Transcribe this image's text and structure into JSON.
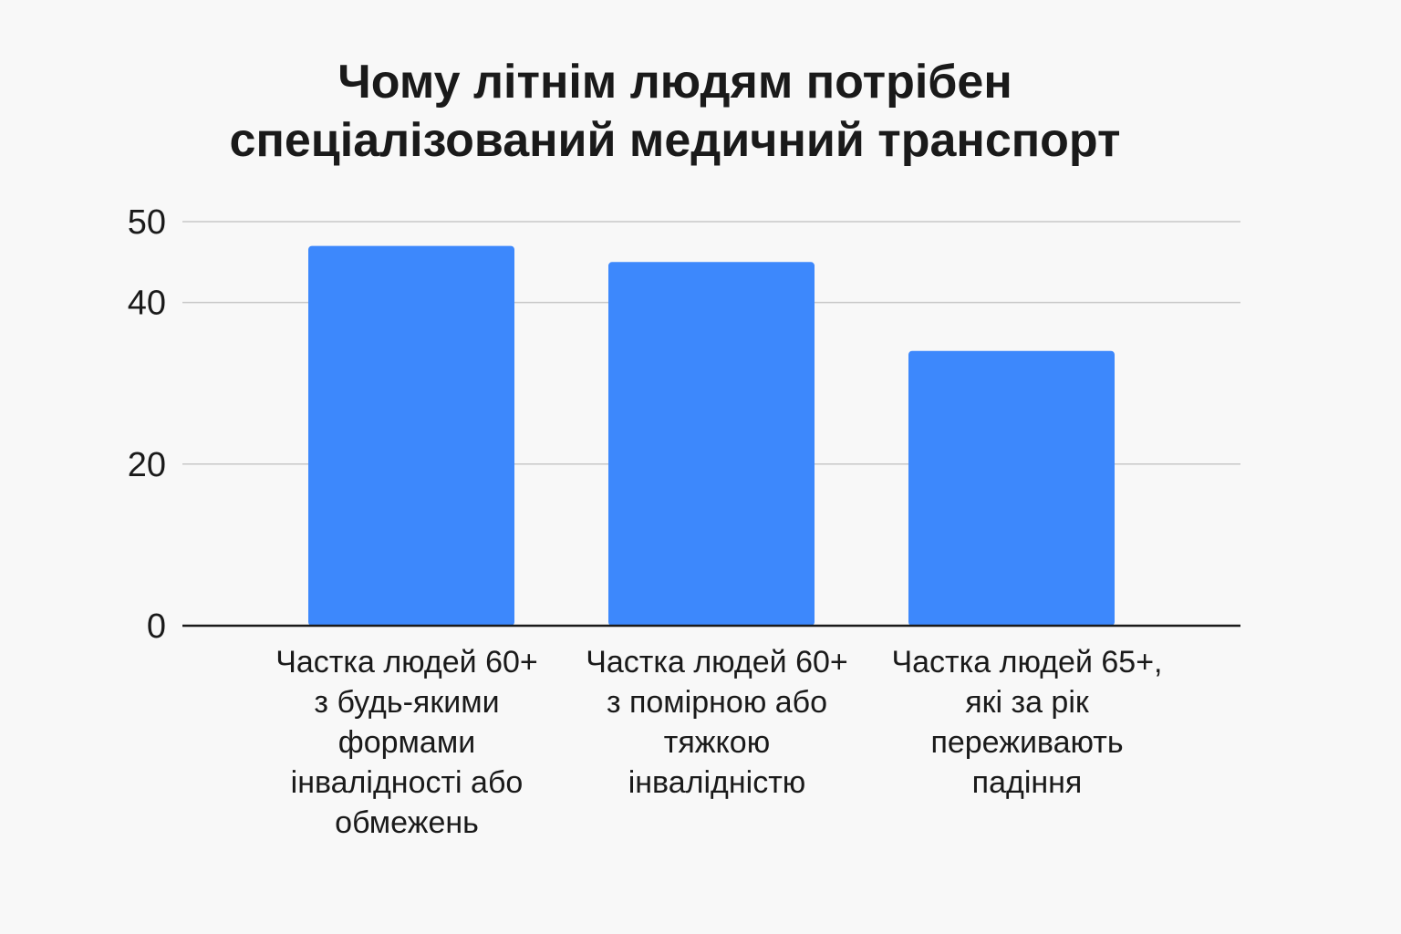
{
  "chart_data": {
    "type": "bar",
    "title_lines": [
      "Чому літнім людям потрібен",
      "спеціалізований медичний транспорт"
    ],
    "categories": [
      "Частка людей 60+ з будь-якими формами інвалідності або обмежень",
      "Частка людей 60+ з помірною або тяжкою інвалідністю",
      "Частка людей 65+, які за рік переживають падіння"
    ],
    "category_lines": [
      [
        "Частка людей 60+",
        "з будь-якими",
        "формами",
        "інвалідності або",
        "обмежень"
      ],
      [
        "Частка людей 60+",
        "з помірною або",
        "тяжкою",
        "інвалідністю"
      ],
      [
        "Частка людей 65+,",
        "які за рік",
        "переживають",
        "падіння"
      ]
    ],
    "values": [
      47,
      45,
      34
    ],
    "ylim": [
      0,
      50
    ],
    "y_ticks": [
      0,
      20,
      40,
      50
    ],
    "xlabel": "",
    "ylabel": "",
    "grid": true,
    "bar_color": "#3d88fc",
    "grid_color": "#c8c8c8",
    "axis_color": "#1a1a1a"
  }
}
